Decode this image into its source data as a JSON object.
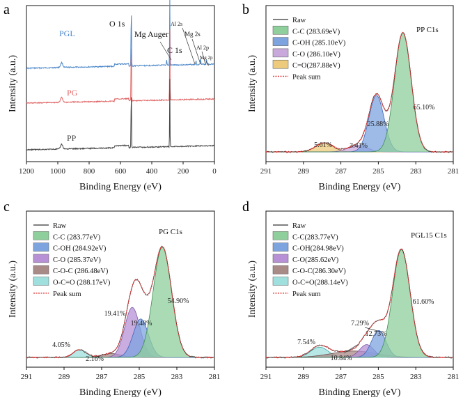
{
  "chart_data": [
    {
      "panel": "a",
      "type": "line",
      "title": "",
      "xlabel": "Binding Energy (eV)",
      "ylabel": "Intensity (a.u.)",
      "xlim": [
        1200,
        0
      ],
      "xticks": [
        1200,
        1000,
        800,
        600,
        400,
        200,
        0
      ],
      "series": [
        {
          "name": "PGL",
          "color": "#4a86c8"
        },
        {
          "name": "PG",
          "color": "#e06464"
        },
        {
          "name": "PP",
          "color": "#444444"
        }
      ],
      "annotations": [
        {
          "text": "O 1s",
          "x": 531
        },
        {
          "text": "Mg Auger",
          "x": 305
        },
        {
          "text": "C 1s",
          "x": 285
        },
        {
          "text": "Al 2s",
          "x": 118
        },
        {
          "text": "Mg 2s",
          "x": 89
        },
        {
          "text": "Al 2p",
          "x": 74
        },
        {
          "text": "Mg 2p",
          "x": 50
        }
      ]
    },
    {
      "panel": "b",
      "type": "line",
      "title": "PP C1s",
      "xlabel": "Binding Energy (eV)",
      "ylabel": "Intensity (a.u.)",
      "xlim": [
        291,
        281
      ],
      "xticks": [
        291,
        289,
        287,
        285,
        283,
        281
      ],
      "legend": [
        "Raw",
        "C-C (283.69eV)",
        "C-OH (285.10eV)",
        "C-O (286.10eV)",
        "C=O(287.88eV)",
        "Peak sum"
      ],
      "components": [
        {
          "name": "C-C",
          "center": 283.69,
          "area_percent": 65.1,
          "color": "#8fcf9c"
        },
        {
          "name": "C-OH",
          "center": 285.1,
          "area_percent": 25.88,
          "color": "#7ea4e0"
        },
        {
          "name": "C-O",
          "center": 286.1,
          "area_percent": 3.41,
          "color": "#c9a9dc"
        },
        {
          "name": "C=O",
          "center": 287.88,
          "area_percent": 5.61,
          "color": "#eecb7c"
        }
      ],
      "percent_labels": [
        "65.10%",
        "25.88%",
        "3.41%",
        "5.61%"
      ]
    },
    {
      "panel": "c",
      "type": "line",
      "title": "PG C1s",
      "xlabel": "Binding Energy (eV)",
      "ylabel": "Intensity (a.u.)",
      "xlim": [
        291,
        281
      ],
      "xticks": [
        291,
        289,
        287,
        285,
        283,
        281
      ],
      "legend": [
        "Raw",
        "C-C (283.77eV)",
        "C-OH (284.92eV)",
        "C-O (285.37eV)",
        "C-O-C (286.48eV)",
        "O-C=O (288.17eV)",
        "Peak sum"
      ],
      "components": [
        {
          "name": "C-C",
          "center": 283.77,
          "area_percent": 54.9,
          "color": "#8fcf9c"
        },
        {
          "name": "C-OH",
          "center": 284.92,
          "area_percent": 19.48,
          "color": "#7ea4e0"
        },
        {
          "name": "C-O",
          "center": 285.37,
          "area_percent": 19.41,
          "color": "#b790d6"
        },
        {
          "name": "C-O-C",
          "center": 286.48,
          "area_percent": 2.16,
          "color": "#a88a86"
        },
        {
          "name": "O-C=O",
          "center": 288.17,
          "area_percent": 4.05,
          "color": "#9fe0de"
        }
      ],
      "percent_labels": [
        "54.90%",
        "19.48%",
        "19.41%",
        "2.16%",
        "4.05%"
      ]
    },
    {
      "panel": "d",
      "type": "line",
      "title": "PGL15 C1s",
      "xlabel": "Binding Energy (eV)",
      "ylabel": "Intensity (a.u.)",
      "xlim": [
        291,
        281
      ],
      "xticks": [
        291,
        289,
        287,
        285,
        283,
        281
      ],
      "legend": [
        "Raw",
        "C-C(283.77eV)",
        "C-OH(284.98eV)",
        "C-O(285.62eV)",
        "C-O-C(286.30eV)",
        "O-C=O(288.14eV)",
        "Peak sum"
      ],
      "components": [
        {
          "name": "C-C",
          "center": 283.77,
          "area_percent": 61.6,
          "color": "#8fcf9c"
        },
        {
          "name": "C-OH",
          "center": 284.98,
          "area_percent": 12.73,
          "color": "#7ea4e0"
        },
        {
          "name": "C-O",
          "center": 285.62,
          "area_percent": 7.29,
          "color": "#b790d6"
        },
        {
          "name": "C-O-C",
          "center": 286.3,
          "area_percent": 10.84,
          "color": "#a88a86"
        },
        {
          "name": "O-C=O",
          "center": 288.14,
          "area_percent": 7.54,
          "color": "#9fe0de"
        }
      ],
      "percent_labels": [
        "61.60%",
        "12.73%",
        "7.29%",
        "10.84%",
        "7.54%"
      ]
    }
  ],
  "colors": {
    "peak_sum": "#e03a3a",
    "raw": "#333333"
  }
}
